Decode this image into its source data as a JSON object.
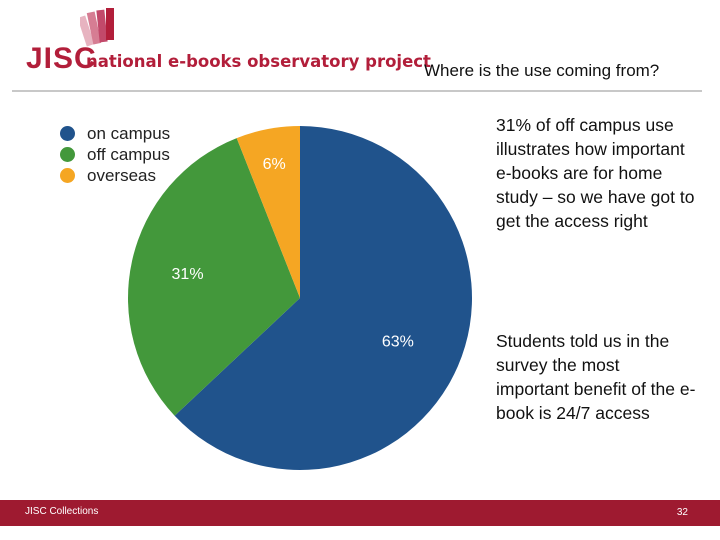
{
  "header": {
    "brand": "JISC",
    "project": "national e-books observatory project",
    "slide_title": "Where is the use coming from?"
  },
  "right_text": {
    "para1": "31% of off campus use illustrates how important e-books are for home study – so we have got to get the access right",
    "para2": "Students told us in the survey the most important benefit of the e-book is 24/7 access"
  },
  "footer": {
    "org": "JISC Collections",
    "page_number": "32"
  },
  "chart_data": {
    "type": "pie",
    "categories": [
      "on campus",
      "off campus",
      "overseas"
    ],
    "values": [
      63,
      31,
      6
    ],
    "labels": [
      "63%",
      "31%",
      "6%"
    ],
    "colors": [
      "#20538c",
      "#43983b",
      "#f5a623"
    ],
    "legend_position": "top-left"
  }
}
